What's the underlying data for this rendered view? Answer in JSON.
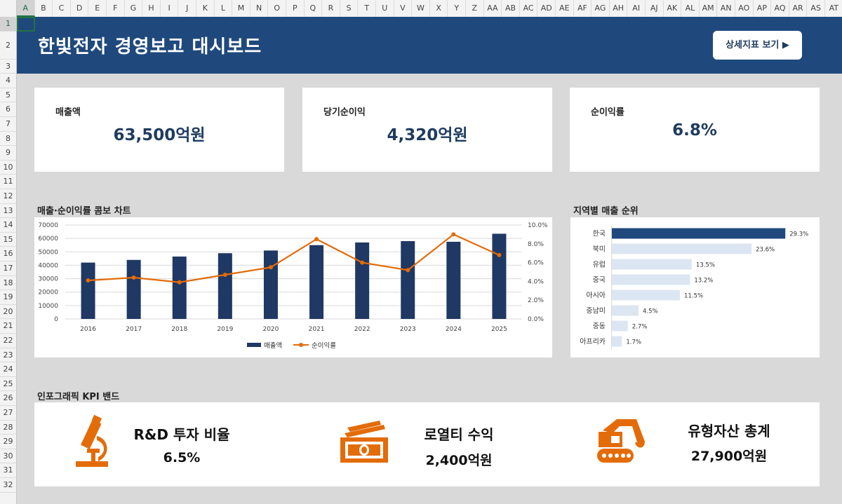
{
  "spreadsheet": {
    "columns": [
      "A",
      "B",
      "C",
      "D",
      "E",
      "F",
      "G",
      "H",
      "I",
      "J",
      "K",
      "L",
      "M",
      "N",
      "O",
      "P",
      "Q",
      "R",
      "S",
      "T",
      "U",
      "V",
      "W",
      "X",
      "Y",
      "Z",
      "AA",
      "AB",
      "AC",
      "AD",
      "AE",
      "AF",
      "AG",
      "AH",
      "AI",
      "AJ",
      "AK",
      "AL",
      "AM",
      "AN",
      "AO",
      "AP",
      "AQ",
      "AR",
      "AS",
      "AT"
    ],
    "rows": [
      "1",
      "2",
      "3",
      "4",
      "5",
      "6",
      "7",
      "8",
      "9",
      "10",
      "11",
      "12",
      "13",
      "14",
      "15",
      "16",
      "17",
      "18",
      "19",
      "20",
      "21",
      "22",
      "23",
      "24",
      "25",
      "26",
      "27",
      "28",
      "29",
      "30",
      "31",
      "32"
    ],
    "selected_cell": "A1"
  },
  "header": {
    "title": "한빛전자 경영보고 대시보드",
    "button_label": "상세지표 보기 ▶"
  },
  "kpis": [
    {
      "label": "매출액",
      "value": "63,500억원"
    },
    {
      "label": "당기순이익",
      "value": "4,320억원"
    },
    {
      "label": "순이익률",
      "value": "6.8%"
    }
  ],
  "combo_chart": {
    "title": "매출·순이익률 콤보 차트"
  },
  "region_chart": {
    "title": "지역별 매출 순위"
  },
  "band": {
    "title": "인포그래픽 KPI 밴드",
    "items": [
      {
        "icon": "microscope-icon",
        "label": "R&D 투자 비율",
        "value": "6.5%"
      },
      {
        "icon": "money-icon",
        "label": "로열티 수익",
        "value": "2,400억원"
      },
      {
        "icon": "excavator-icon",
        "label": "유형자산 총계",
        "value": "27,900억원"
      }
    ]
  },
  "colors": {
    "header_bg": "#1f497d",
    "bar": "#1f3864",
    "line": "#e36c09",
    "top_region_bar": "#1f497d",
    "other_region_bar": "#dce6f2",
    "icon": "#e36c09"
  },
  "chart_data": [
    {
      "type": "bar",
      "categories": [
        "2016",
        "2017",
        "2018",
        "2019",
        "2020",
        "2021",
        "2022",
        "2023",
        "2024",
        "2025"
      ],
      "series": [
        {
          "name": "매출액",
          "type": "bar",
          "axis": "left",
          "values": [
            42000,
            44000,
            46500,
            49000,
            51000,
            55000,
            57000,
            58000,
            57500,
            63500
          ]
        },
        {
          "name": "순이익률",
          "type": "line",
          "axis": "right",
          "values": [
            4.1,
            4.4,
            3.9,
            4.7,
            5.5,
            8.5,
            6.0,
            5.2,
            9.0,
            6.8
          ]
        }
      ],
      "y_left": {
        "range": [
          0,
          70000
        ],
        "ticks": [
          "0",
          "10000",
          "20000",
          "30000",
          "40000",
          "50000",
          "60000",
          "70000"
        ]
      },
      "y_right": {
        "range": [
          0,
          10
        ],
        "ticks": [
          "0.0%",
          "2.0%",
          "4.0%",
          "6.0%",
          "8.0%",
          "10.0%"
        ]
      },
      "legend": "bottom",
      "grid": true
    },
    {
      "type": "bar",
      "orientation": "horizontal",
      "categories": [
        "한국",
        "북미",
        "유럽",
        "중국",
        "아시아",
        "중남미",
        "중동",
        "아프리카"
      ],
      "values": [
        29.3,
        23.6,
        13.5,
        13.2,
        11.5,
        4.5,
        2.7,
        1.7
      ],
      "value_labels": [
        "29.3%",
        "23.6%",
        "13.5%",
        "13.2%",
        "11.5%",
        "4.5%",
        "2.7%",
        "1.7%"
      ],
      "xlim": [
        0,
        32
      ]
    }
  ]
}
